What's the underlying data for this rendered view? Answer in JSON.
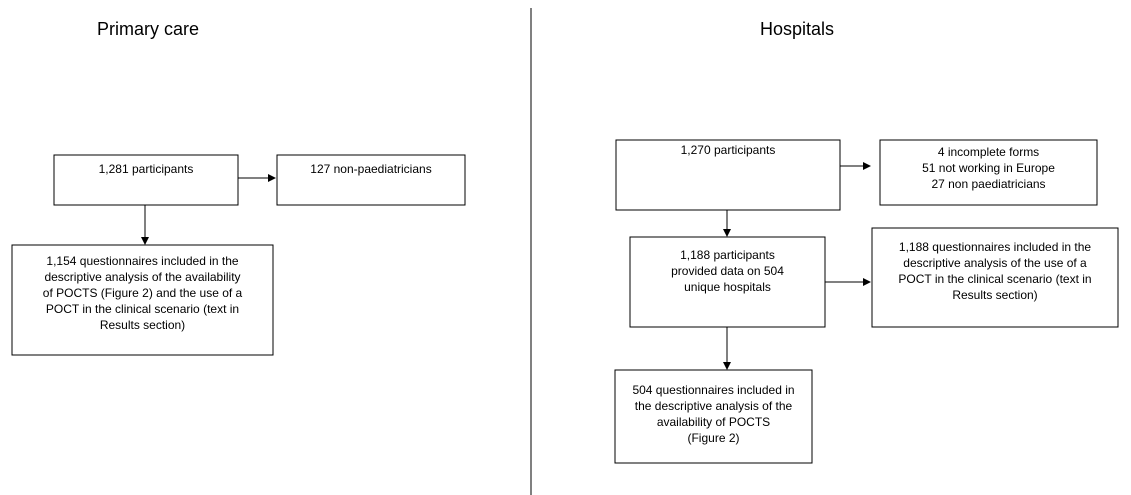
{
  "headings": {
    "left": "Primary care",
    "right": "Hospitals"
  },
  "nodes": [
    {
      "lines": [
        "1,281 participants"
      ]
    },
    {
      "lines": [
        "127 non-paediatricians"
      ]
    },
    {
      "lines": [
        "1,154 questionnaires included in the",
        "descriptive analysis of the availability",
        "of POCTS (Figure 2)  and the use of a",
        "POCT in the clinical scenario (text in",
        "Results section)"
      ]
    },
    {
      "lines": [
        "1,270 participants"
      ]
    },
    {
      "lines": [
        "4 incomplete forms",
        "51 not working in Europe",
        "27 non paediatricians"
      ]
    },
    {
      "lines": [
        "1,188 participants",
        "provided data on 504",
        "unique hospitals"
      ]
    },
    {
      "lines": [
        "1,188 questionnaires included in the",
        "descriptive analysis of the use of a",
        "POCT in the clinical scenario (text in",
        "Results section)"
      ]
    },
    {
      "lines": [
        "504 questionnaires included in",
        "the  descriptive analysis of the",
        "availability of POCTS",
        "(Figure 2)"
      ]
    }
  ]
}
